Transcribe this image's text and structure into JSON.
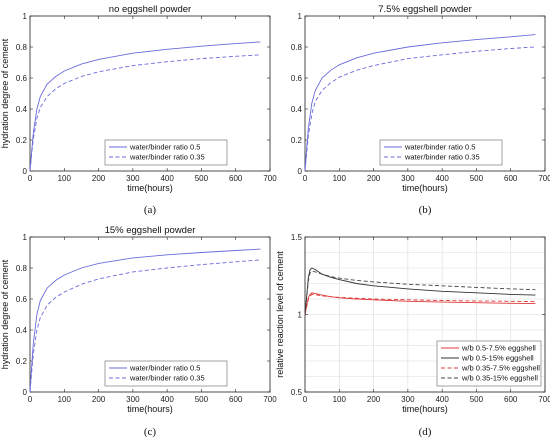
{
  "chart_data": [
    {
      "type": "line",
      "title": "no eggshell powder",
      "xlabel": "time(hours)",
      "ylabel": "hydration degree of cement",
      "xlim": [
        0,
        700
      ],
      "ylim": [
        0,
        1
      ],
      "xticks": [
        "0",
        "100",
        "200",
        "300",
        "400",
        "500",
        "600",
        "700"
      ],
      "yticks": [
        "0",
        "0.2",
        "0.4",
        "0.6",
        "0.8",
        "1"
      ],
      "grid": false,
      "legend": "bottom-center",
      "caption": "(a)",
      "x": [
        0,
        5,
        10,
        20,
        30,
        50,
        75,
        100,
        150,
        200,
        300,
        400,
        500,
        600,
        672
      ],
      "series": [
        {
          "name": "water/binder ratio 0.5",
          "color": "#6b6bdc",
          "dash": "solid",
          "values": [
            0.0,
            0.13,
            0.25,
            0.4,
            0.48,
            0.56,
            0.61,
            0.645,
            0.69,
            0.72,
            0.76,
            0.785,
            0.805,
            0.822,
            0.833
          ]
        },
        {
          "name": "water/binder ratio 0.35",
          "color": "#6b6bdc",
          "dash": "dashed",
          "values": [
            0.0,
            0.11,
            0.21,
            0.34,
            0.41,
            0.48,
            0.53,
            0.565,
            0.61,
            0.64,
            0.68,
            0.705,
            0.725,
            0.74,
            0.75
          ]
        }
      ]
    },
    {
      "type": "line",
      "title": "7.5% eggshell powder",
      "xlabel": "time(hours)",
      "ylabel": "",
      "xlim": [
        0,
        700
      ],
      "ylim": [
        0,
        1
      ],
      "xticks": [
        "0",
        "100",
        "200",
        "300",
        "400",
        "500",
        "600",
        "700"
      ],
      "yticks": [
        "0",
        "0.2",
        "0.4",
        "0.6",
        "0.8",
        "1"
      ],
      "grid": false,
      "legend": "bottom-center",
      "caption": "(b)",
      "x": [
        0,
        5,
        10,
        20,
        30,
        50,
        75,
        100,
        150,
        200,
        300,
        400,
        500,
        600,
        672
      ],
      "series": [
        {
          "name": "water/binder ratio 0.5",
          "color": "#6b6bdc",
          "dash": "solid",
          "values": [
            0.0,
            0.15,
            0.28,
            0.44,
            0.52,
            0.6,
            0.65,
            0.685,
            0.73,
            0.76,
            0.8,
            0.827,
            0.848,
            0.866,
            0.88
          ]
        },
        {
          "name": "water/binder ratio 0.35",
          "color": "#6b6bdc",
          "dash": "dashed",
          "values": [
            0.0,
            0.12,
            0.23,
            0.37,
            0.45,
            0.52,
            0.57,
            0.605,
            0.65,
            0.68,
            0.725,
            0.75,
            0.772,
            0.79,
            0.8
          ]
        }
      ]
    },
    {
      "type": "line",
      "title": "15% eggshell powder",
      "xlabel": "time(hours)",
      "ylabel": "hydration degree of cement",
      "xlim": [
        0,
        700
      ],
      "ylim": [
        0,
        1
      ],
      "xticks": [
        "0",
        "100",
        "200",
        "300",
        "400",
        "500",
        "600",
        "700"
      ],
      "yticks": [
        "0",
        "0.2",
        "0.4",
        "0.6",
        "0.8",
        "1"
      ],
      "grid": false,
      "legend": "bottom-center",
      "caption": "(c)",
      "x": [
        0,
        5,
        10,
        20,
        30,
        50,
        75,
        100,
        150,
        200,
        300,
        400,
        500,
        600,
        672
      ],
      "series": [
        {
          "name": "water/binder ratio 0.5",
          "color": "#6b6bdc",
          "dash": "solid",
          "values": [
            0.0,
            0.17,
            0.32,
            0.5,
            0.59,
            0.67,
            0.72,
            0.755,
            0.8,
            0.83,
            0.865,
            0.885,
            0.9,
            0.913,
            0.922
          ]
        },
        {
          "name": "water/binder ratio 0.35",
          "color": "#6b6bdc",
          "dash": "dashed",
          "values": [
            0.0,
            0.13,
            0.25,
            0.4,
            0.48,
            0.56,
            0.61,
            0.645,
            0.695,
            0.73,
            0.775,
            0.8,
            0.822,
            0.84,
            0.852
          ]
        }
      ]
    },
    {
      "type": "line",
      "title": "",
      "xlabel": "time(hours)",
      "ylabel": "relative reaction level of cement",
      "xlim": [
        0,
        700
      ],
      "ylim": [
        0.5,
        1.5
      ],
      "xticks": [
        "0",
        "100",
        "200",
        "300",
        "400",
        "500",
        "600",
        "700"
      ],
      "yticks": [
        "0.5",
        "1",
        "1.5"
      ],
      "ytick_values": [
        0.5,
        1,
        1.5
      ],
      "grid": true,
      "legend": "bottom-right",
      "caption": "(d)",
      "x": [
        0,
        5,
        10,
        15,
        20,
        30,
        50,
        75,
        100,
        150,
        200,
        300,
        400,
        500,
        600,
        672
      ],
      "series": [
        {
          "name": "w/b 0.5-7.5% eggshell",
          "color": "#e03a3a",
          "dash": "solid",
          "values": [
            1.0,
            1.06,
            1.11,
            1.13,
            1.14,
            1.135,
            1.125,
            1.115,
            1.108,
            1.1,
            1.095,
            1.085,
            1.08,
            1.076,
            1.072,
            1.07
          ]
        },
        {
          "name": "w/b 0.5-15% eggshell",
          "color": "#333333",
          "dash": "solid",
          "values": [
            1.0,
            1.12,
            1.24,
            1.29,
            1.3,
            1.29,
            1.26,
            1.24,
            1.225,
            1.2,
            1.185,
            1.165,
            1.15,
            1.14,
            1.13,
            1.125
          ]
        },
        {
          "name": "w/b 0.35-7.5% eggshell",
          "color": "#e03a3a",
          "dash": "dashed",
          "values": [
            1.0,
            1.05,
            1.1,
            1.12,
            1.13,
            1.128,
            1.12,
            1.115,
            1.11,
            1.105,
            1.1,
            1.095,
            1.09,
            1.087,
            1.085,
            1.083
          ]
        },
        {
          "name": "w/b 0.35-15% eggshell",
          "color": "#444444",
          "dash": "dashed",
          "values": [
            1.0,
            1.11,
            1.22,
            1.27,
            1.28,
            1.275,
            1.26,
            1.245,
            1.235,
            1.22,
            1.21,
            1.195,
            1.185,
            1.175,
            1.165,
            1.16
          ]
        }
      ]
    }
  ]
}
